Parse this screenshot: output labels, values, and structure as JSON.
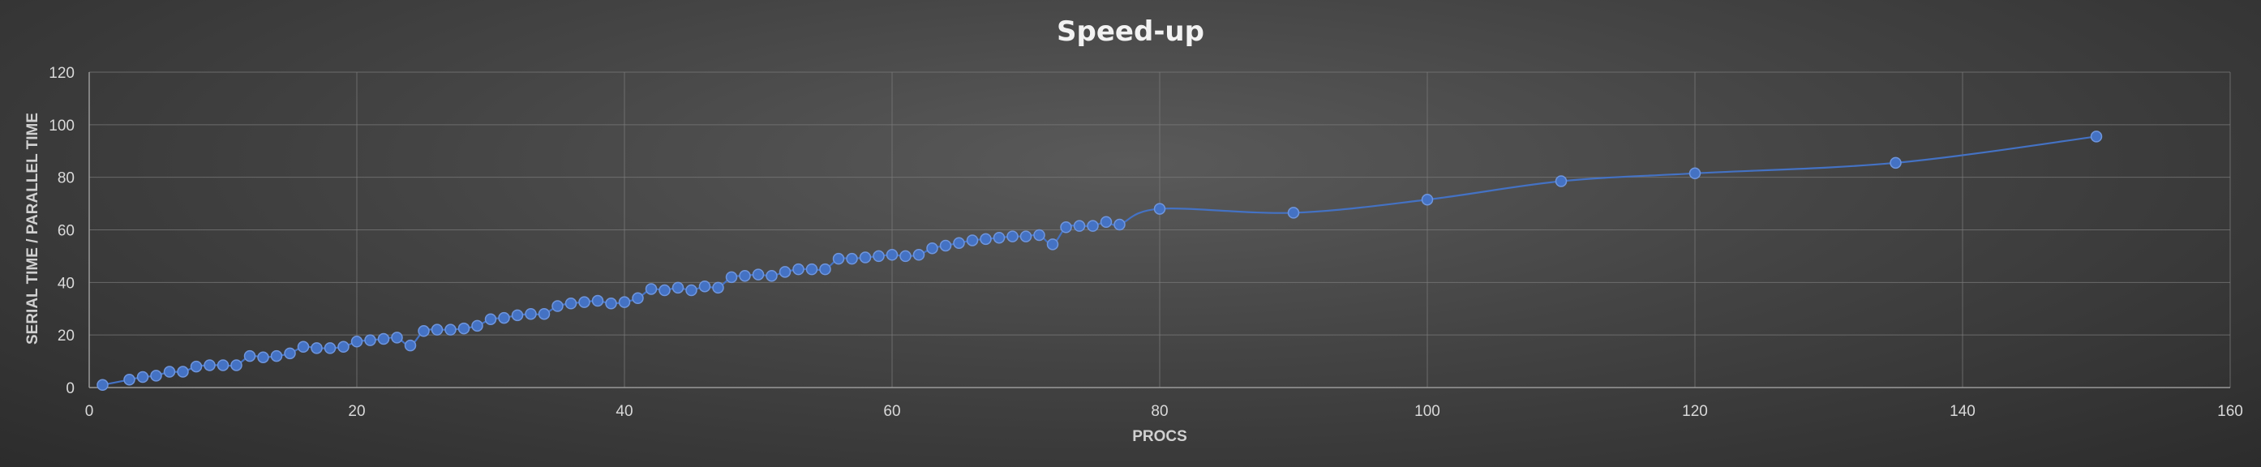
{
  "chart_data": {
    "type": "scatter",
    "title": "Speed-up",
    "xlabel": "PROCS",
    "ylabel": "SERIAL TIME / PARALLEL TIME",
    "xlim": [
      0,
      160
    ],
    "ylim": [
      0,
      120
    ],
    "xticks": [
      0,
      20,
      40,
      60,
      80,
      100,
      120,
      140,
      160
    ],
    "yticks": [
      0,
      20,
      40,
      60,
      80,
      100,
      120
    ],
    "grid": true,
    "line": "smooth",
    "color": "#4472c4",
    "series": [
      {
        "x": [
          1,
          3,
          4,
          5,
          6,
          7,
          8,
          9,
          10,
          11,
          12,
          13,
          14,
          15,
          16,
          17,
          18,
          19,
          20,
          21,
          22,
          23,
          24,
          25,
          26,
          27,
          28,
          29,
          30,
          31,
          32,
          33,
          34,
          35,
          36,
          37,
          38,
          39,
          40,
          41,
          42,
          43,
          44,
          45,
          46,
          47,
          48,
          49,
          50,
          51,
          52,
          53,
          54,
          55,
          56,
          57,
          58,
          59,
          60,
          61,
          62,
          63,
          64,
          65,
          66,
          67,
          68,
          69,
          70,
          71,
          72,
          73,
          74,
          75,
          76,
          77,
          80,
          90,
          100,
          110,
          120,
          135,
          150
        ],
        "y": [
          1,
          3,
          4,
          4.5,
          6,
          6,
          8,
          8.5,
          8.5,
          8.5,
          12,
          11.5,
          12,
          13,
          15.5,
          15,
          15,
          15.5,
          17.5,
          18,
          18.5,
          19,
          16,
          21.5,
          22,
          22,
          22.5,
          23.5,
          26,
          26.5,
          27.5,
          28,
          28,
          31,
          32,
          32.5,
          33,
          32,
          32.5,
          34,
          37.5,
          37,
          38,
          37,
          38.5,
          38,
          42,
          42.5,
          43,
          42.5,
          44,
          45,
          45,
          45,
          49,
          49,
          49.5,
          50,
          50.5,
          50,
          50.5,
          53,
          54,
          55,
          56,
          56.5,
          57,
          57.5,
          57.5,
          58,
          54.5,
          61,
          61.5,
          61.5,
          63,
          62,
          68,
          66.5,
          71.5,
          78.5,
          81.5,
          85.5,
          95.5
        ]
      }
    ]
  }
}
